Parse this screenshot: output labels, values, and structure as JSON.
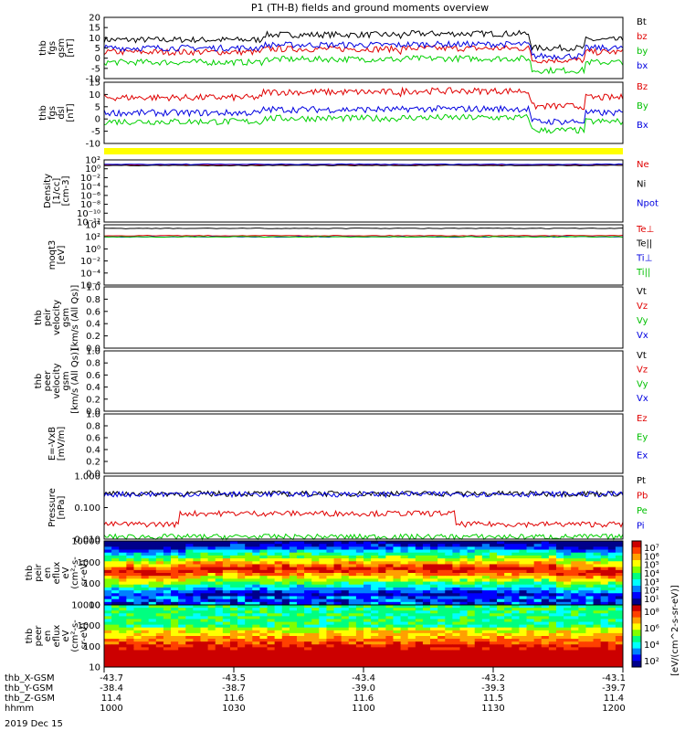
{
  "title": "P1 (TH-B) fields and ground moments overview",
  "date": "2019 Dec 15",
  "colors": {
    "black": "#000000",
    "red": "#e00000",
    "green": "#00d000",
    "blue": "#0000e0",
    "yellow": "#ffff00",
    "darkred": "#a00000",
    "darkgreen": "#006000"
  },
  "chart_data": [
    {
      "type": "line",
      "id": "fgs_gsm",
      "ylabel": [
        "thb",
        "fgs",
        "gsm",
        "[nT]"
      ],
      "yticks": [
        "20",
        "15",
        "10",
        "5",
        "0",
        "-5",
        "-10"
      ],
      "ylim": [
        -10,
        20
      ],
      "legend": [
        "Bt",
        "bz",
        "by",
        "bx"
      ],
      "series": [
        {
          "name": "Bt",
          "color": "#000000",
          "level": 9
        },
        {
          "name": "bz",
          "color": "#e00000",
          "level": 3
        },
        {
          "name": "by",
          "color": "#00d000",
          "level": -2
        },
        {
          "name": "bx",
          "color": "#0000e0",
          "level": 5
        }
      ]
    },
    {
      "type": "line",
      "id": "fgs_dsl",
      "ylabel": [
        "thb",
        "fgs",
        "dsl",
        "[nT]"
      ],
      "yticks": [
        "15",
        "10",
        "5",
        "0",
        "-5",
        "-10"
      ],
      "ylim": [
        -13,
        15
      ],
      "legend": [
        "Bz",
        "By",
        "Bx"
      ],
      "series": [
        {
          "name": "Bz",
          "color": "#e00000",
          "level": 8
        },
        {
          "name": "By",
          "color": "#00d000",
          "level": -3
        },
        {
          "name": "Bx",
          "color": "#0000e0",
          "level": 1
        }
      ]
    },
    {
      "type": "line",
      "id": "density",
      "ylabel": [
        "Density",
        "[1/cc]",
        "[cm-3]"
      ],
      "yticks": [
        "10²",
        "10⁰",
        "10⁻²",
        "10⁻⁴",
        "10⁻⁶",
        "10⁻⁸",
        "10⁻¹⁰",
        "10⁻¹²"
      ],
      "legend": [
        "Ne",
        "Ni",
        "Npot"
      ],
      "series": [
        {
          "name": "Ne",
          "color": "#e00000"
        },
        {
          "name": "Ni",
          "color": "#000000"
        },
        {
          "name": "Npot",
          "color": "#0000e0"
        }
      ]
    },
    {
      "type": "line",
      "id": "temp",
      "ylabel": [
        "moqt3",
        "[eV]"
      ],
      "yticks": [
        "10⁴",
        "10²",
        "10⁰",
        "10⁻²",
        "10⁻⁴",
        "10⁻⁶"
      ],
      "legend": [
        "Te⊥",
        "Te||",
        "Ti⊥",
        "Ti||"
      ],
      "series": [
        {
          "name": "Te⊥",
          "color": "#e00000"
        },
        {
          "name": "Te||",
          "color": "#000000"
        },
        {
          "name": "Ti⊥",
          "color": "#0000e0"
        },
        {
          "name": "Ti||",
          "color": "#00d000"
        }
      ]
    },
    {
      "type": "line",
      "id": "peir_vel",
      "ylabel": [
        "thb",
        "peir",
        "velocity",
        "gsm",
        "[km/s (All Qs)]"
      ],
      "yticks": [
        "1.0",
        "0.8",
        "0.6",
        "0.4",
        "0.2",
        "0.0"
      ],
      "ylim": [
        0,
        1
      ],
      "legend": [
        "Vt",
        "Vz",
        "Vy",
        "Vx"
      ]
    },
    {
      "type": "line",
      "id": "peer_vel",
      "ylabel": [
        "thb",
        "peer",
        "velocity",
        "gsm",
        "[km/s (All Qs)]"
      ],
      "yticks": [
        "1.0",
        "0.8",
        "0.6",
        "0.4",
        "0.2",
        "0.0"
      ],
      "ylim": [
        0,
        1
      ],
      "legend": [
        "Vt",
        "Vz",
        "Vy",
        "Vx"
      ]
    },
    {
      "type": "line",
      "id": "efield",
      "ylabel": [
        "E=-VxB",
        "[mV/m]"
      ],
      "yticks": [
        "1.0",
        "0.8",
        "0.6",
        "0.4",
        "0.2",
        "0.0"
      ],
      "ylim": [
        0,
        1
      ],
      "legend": [
        "Ez",
        "Ey",
        "Ex"
      ]
    },
    {
      "type": "line",
      "id": "pressure",
      "ylabel": [
        "Pressure",
        "[nPa]"
      ],
      "yticks": [
        "1.000",
        "0.100",
        "0.010"
      ],
      "legend": [
        "Pt",
        "Pb",
        "Pe",
        "Pi"
      ],
      "series": [
        {
          "name": "Pt",
          "color": "#000000",
          "level": 0.28
        },
        {
          "name": "Pb",
          "color": "#e00000",
          "level": 0.03
        },
        {
          "name": "Pe",
          "color": "#00d000",
          "level": 0.012
        },
        {
          "name": "Pi",
          "color": "#0000e0",
          "level": 0.27
        }
      ]
    },
    {
      "type": "heatmap",
      "id": "peir_eflux",
      "ylabel": [
        "thb",
        "peir",
        "en",
        "eflux",
        "eV",
        "(cm²-s-",
        "sr-eV)"
      ],
      "yticks": [
        "10000",
        "1000",
        "100",
        "10"
      ],
      "colorbar_ticks": [
        "10⁷",
        "10⁶",
        "10⁵",
        "10⁴",
        "10³",
        "10²",
        "10¹"
      ],
      "colorbar_label": "[eV/(cm^2-s-sr-eV)] (All Qs)"
    },
    {
      "type": "heatmap",
      "id": "peer_eflux",
      "ylabel": [
        "thb",
        "peer",
        "en",
        "eflux",
        "eV",
        "(cm²-s-",
        "sr-eV)"
      ],
      "yticks": [
        "10000",
        "1000",
        "100",
        "10"
      ],
      "colorbar_ticks": [
        "10⁸",
        "10⁶",
        "10⁴",
        "10²"
      ],
      "colorbar_label": "[eV/(cm^2-s-sr-eV)]"
    }
  ],
  "xaxis": {
    "row_labels": [
      "thb_X-GSM",
      "thb_Y-GSM",
      "thb_Z-GSM",
      "hhmm"
    ],
    "columns": [
      [
        "-43.7",
        "-38.4",
        "11.4",
        "1000"
      ],
      [
        "-43.5",
        "-38.7",
        "11.6",
        "1030"
      ],
      [
        "-43.4",
        "-39.0",
        "11.6",
        "1100"
      ],
      [
        "-43.2",
        "-39.3",
        "11.5",
        "1130"
      ],
      [
        "-43.1",
        "-39.7",
        "11.4",
        "1200"
      ]
    ]
  },
  "colorbar_units": "[eV/(cm^2-s-sr-eV)]"
}
